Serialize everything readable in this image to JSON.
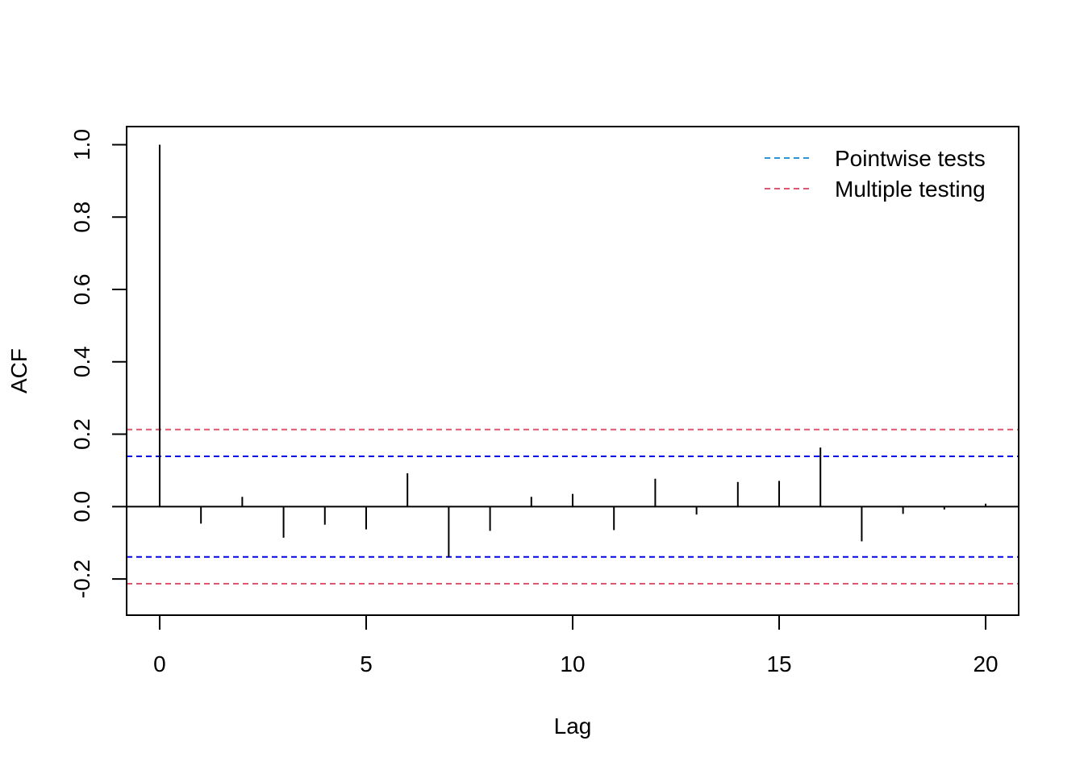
{
  "chart_data": {
    "type": "bar",
    "title": "",
    "xlabel": "Lag",
    "ylabel": "ACF",
    "xlim": [
      -0.8,
      20.8
    ],
    "ylim": [
      -0.3,
      1.05
    ],
    "x_ticks": [
      0,
      5,
      10,
      15,
      20
    ],
    "x_tick_labels": [
      "0",
      "5",
      "10",
      "15",
      "20"
    ],
    "y_ticks": [
      -0.2,
      0.0,
      0.2,
      0.4,
      0.6,
      0.8,
      1.0
    ],
    "y_tick_labels": [
      "-0.2",
      "0.0",
      "0.2",
      "0.4",
      "0.6",
      "0.8",
      "1.0"
    ],
    "grid": false,
    "legend_position": "top-right",
    "series": [
      {
        "lags": [
          0,
          1,
          2,
          3,
          4,
          5,
          6,
          7,
          8,
          9,
          10,
          11,
          12,
          13,
          14,
          15,
          16,
          17,
          18,
          19,
          20
        ],
        "values": [
          1.0,
          -0.047,
          0.027,
          -0.086,
          -0.05,
          -0.063,
          0.092,
          -0.14,
          -0.067,
          0.027,
          0.035,
          -0.065,
          0.077,
          -0.022,
          0.068,
          0.071,
          0.163,
          -0.096,
          -0.02,
          -0.008,
          0.008
        ],
        "color": "#000000"
      }
    ],
    "reference_lines": [
      {
        "legend": "Pointwise tests",
        "value": 0.139,
        "legend_color": "#2a96d6",
        "line_color": "#0000ee"
      },
      {
        "legend": "Multiple testing",
        "value": 0.213,
        "legend_color": "#e0566e",
        "line_color": "#e0566e"
      }
    ]
  }
}
